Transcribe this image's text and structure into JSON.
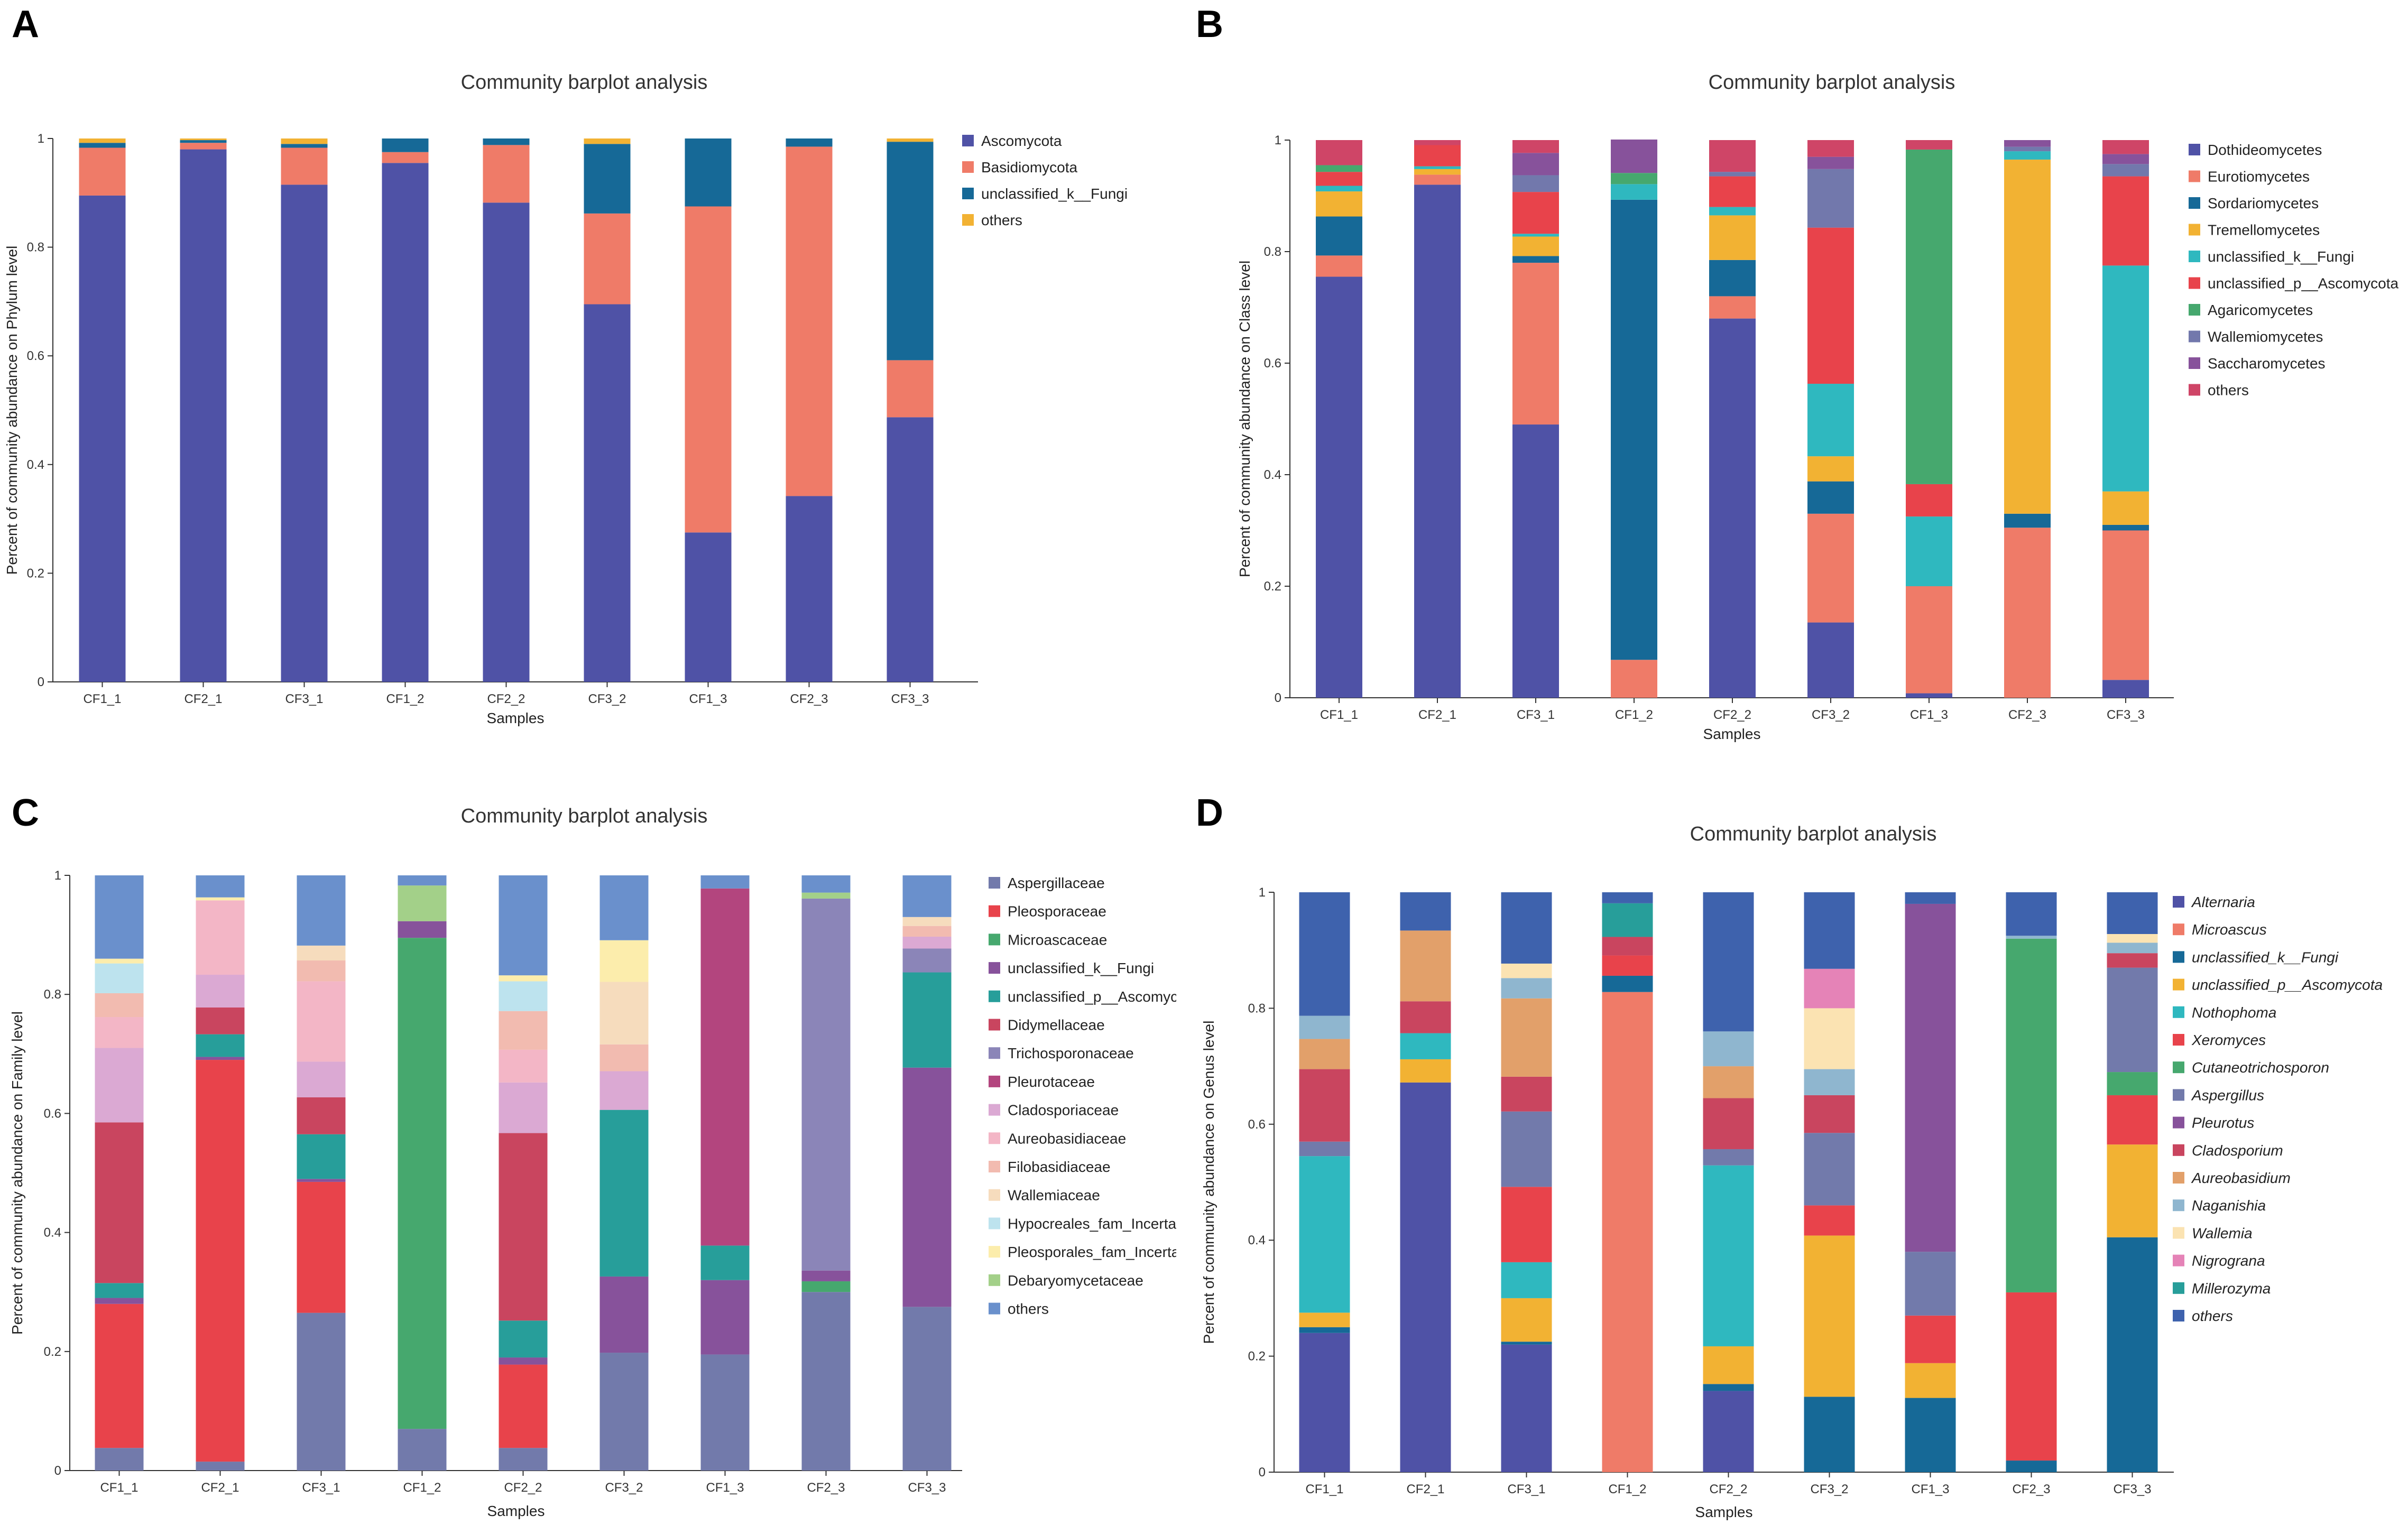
{
  "chart_data": [
    {
      "panel": "A",
      "type": "bar",
      "stacked": true,
      "title": "Community barplot analysis",
      "xlabel": "Samples",
      "ylabel": "Percent of community abundance on Phylum level",
      "ylim": [
        0,
        1
      ],
      "yticks": [
        "0",
        "0.2",
        "0.4",
        "0.6",
        "0.8",
        "1"
      ],
      "categories": [
        "CF1_1",
        "CF2_1",
        "CF3_1",
        "CF1_2",
        "CF2_2",
        "CF3_2",
        "CF1_3",
        "CF2_3",
        "CF3_3"
      ],
      "legend_italic": false,
      "series": [
        {
          "name": "Ascomycota",
          "color": "#4f52a6",
          "values": [
            0.895,
            0.98,
            0.915,
            0.955,
            0.882,
            0.695,
            0.275,
            0.342,
            0.487
          ]
        },
        {
          "name": "Basidiomycota",
          "color": "#ef7b68",
          "values": [
            0.088,
            0.012,
            0.068,
            0.02,
            0.106,
            0.167,
            0.6,
            0.643,
            0.105
          ]
        },
        {
          "name": "unclassified_k__Fungi",
          "color": "#166997",
          "values": [
            0.009,
            0.005,
            0.007,
            0.025,
            0.012,
            0.128,
            0.125,
            0.015,
            0.402
          ]
        },
        {
          "name": "others",
          "color": "#f2b233",
          "values": [
            0.008,
            0.003,
            0.01,
            0.0,
            0.0,
            0.01,
            0.0,
            0.0,
            0.006
          ]
        }
      ]
    },
    {
      "panel": "B",
      "type": "bar",
      "stacked": true,
      "title": "Community barplot analysis",
      "xlabel": "Samples",
      "ylabel": "Percent of community abundance on Class level",
      "ylim": [
        0,
        1
      ],
      "yticks": [
        "0",
        "0.2",
        "0.4",
        "0.6",
        "0.8",
        "1"
      ],
      "categories": [
        "CF1_1",
        "CF2_1",
        "CF3_1",
        "CF1_2",
        "CF2_2",
        "CF3_2",
        "CF1_3",
        "CF2_3",
        "CF3_3"
      ],
      "legend_italic": false,
      "series": [
        {
          "name": "Dothideomycetes",
          "color": "#4f52a6",
          "values": [
            0.755,
            0.92,
            0.49,
            0.0,
            0.68,
            0.135,
            0.008,
            0.0,
            0.032
          ]
        },
        {
          "name": "Eurotiomycetes",
          "color": "#ef7b68",
          "values": [
            0.038,
            0.018,
            0.29,
            0.068,
            0.04,
            0.195,
            0.192,
            0.305,
            0.268
          ]
        },
        {
          "name": "Sordariomycetes",
          "color": "#166997",
          "values": [
            0.07,
            0.0,
            0.012,
            0.825,
            0.065,
            0.058,
            0.0,
            0.025,
            0.01
          ]
        },
        {
          "name": "Tremellomycetes",
          "color": "#f2b233",
          "values": [
            0.045,
            0.01,
            0.035,
            0.0,
            0.08,
            0.045,
            0.0,
            0.635,
            0.06
          ]
        },
        {
          "name": "unclassified_k__Fungi",
          "color": "#2fb8bf",
          "values": [
            0.01,
            0.005,
            0.005,
            0.028,
            0.015,
            0.13,
            0.125,
            0.015,
            0.405
          ]
        },
        {
          "name": "unclassified_p__Ascomycota",
          "color": "#e8434b",
          "values": [
            0.025,
            0.038,
            0.075,
            0.0,
            0.055,
            0.28,
            0.058,
            0.0,
            0.16
          ]
        },
        {
          "name": "Agaricomycetes",
          "color": "#46a86e",
          "values": [
            0.012,
            0.0,
            0.0,
            0.02,
            0.0,
            0.0,
            0.6,
            0.0,
            0.0
          ]
        },
        {
          "name": "Wallemiomycetes",
          "color": "#7278ac",
          "values": [
            0.0,
            0.0,
            0.03,
            0.0,
            0.008,
            0.105,
            0.0,
            0.008,
            0.022
          ]
        },
        {
          "name": "Saccharomycetes",
          "color": "#87529b",
          "values": [
            0.0,
            0.0,
            0.04,
            0.06,
            0.0,
            0.022,
            0.0,
            0.012,
            0.018
          ]
        },
        {
          "name": "others",
          "color": "#cf4567",
          "values": [
            0.045,
            0.009,
            0.023,
            0.0,
            0.057,
            0.03,
            0.017,
            0.0,
            0.025
          ]
        }
      ]
    },
    {
      "panel": "C",
      "type": "bar",
      "stacked": true,
      "title": "Community barplot analysis",
      "xlabel": "Samples",
      "ylabel": "Percent of community abundance on Family level",
      "ylim": [
        0,
        1
      ],
      "yticks": [
        "0",
        "0.2",
        "0.4",
        "0.6",
        "0.8",
        "1"
      ],
      "categories": [
        "CF1_1",
        "CF2_1",
        "CF3_1",
        "CF1_2",
        "CF2_2",
        "CF3_2",
        "CF1_3",
        "CF2_3",
        "CF3_3"
      ],
      "legend_italic": false,
      "series": [
        {
          "name": "Aspergillaceae",
          "color": "#727aab",
          "values": [
            0.038,
            0.015,
            0.265,
            0.07,
            0.038,
            0.198,
            0.195,
            0.3,
            0.275
          ]
        },
        {
          "name": "Pleosporaceae",
          "color": "#e8434b",
          "values": [
            0.242,
            0.675,
            0.22,
            0.0,
            0.14,
            0.0,
            0.0,
            0.0,
            0.0
          ]
        },
        {
          "name": "Microascaceae",
          "color": "#46a86e",
          "values": [
            0.0,
            0.0,
            0.0,
            0.825,
            0.0,
            0.0,
            0.0,
            0.018,
            0.0
          ]
        },
        {
          "name": "unclassified_k__Fungi",
          "color": "#87529b",
          "values": [
            0.01,
            0.005,
            0.005,
            0.028,
            0.012,
            0.128,
            0.125,
            0.018,
            0.402
          ]
        },
        {
          "name": "unclassified_p__Ascomycota",
          "color": "#279e9a",
          "values": [
            0.025,
            0.038,
            0.075,
            0.0,
            0.062,
            0.28,
            0.058,
            0.0,
            0.16
          ]
        },
        {
          "name": "Didymellaceae",
          "color": "#c9455f",
          "values": [
            0.27,
            0.045,
            0.062,
            0.0,
            0.315,
            0.0,
            0.0,
            0.0,
            0.0
          ]
        },
        {
          "name": "Trichosporonaceae",
          "color": "#8b85b8",
          "values": [
            0.0,
            0.0,
            0.0,
            0.0,
            0.0,
            0.0,
            0.0,
            0.625,
            0.04
          ]
        },
        {
          "name": "Pleurotaceae",
          "color": "#b3457e",
          "values": [
            0.0,
            0.0,
            0.0,
            0.0,
            0.0,
            0.0,
            0.6,
            0.0,
            0.0
          ]
        },
        {
          "name": "Cladosporiaceae",
          "color": "#dba9d3",
          "values": [
            0.125,
            0.055,
            0.06,
            0.0,
            0.085,
            0.065,
            0.0,
            0.0,
            0.02
          ]
        },
        {
          "name": "Aureobasidiaceae",
          "color": "#f3b6c6",
          "values": [
            0.052,
            0.125,
            0.135,
            0.0,
            0.055,
            0.0,
            0.0,
            0.0,
            0.0
          ]
        },
        {
          "name": "Filobasidiaceae",
          "color": "#f2bbb0",
          "values": [
            0.04,
            0.0,
            0.035,
            0.0,
            0.065,
            0.045,
            0.0,
            0.0,
            0.018
          ]
        },
        {
          "name": "Wallemiaceae",
          "color": "#f6dcbd",
          "values": [
            0.0,
            0.0,
            0.025,
            0.0,
            0.0,
            0.105,
            0.0,
            0.0,
            0.015
          ]
        },
        {
          "name": "Hypocreales_fam_Incertae_sedis",
          "color": "#bde3ee",
          "values": [
            0.05,
            0.0,
            0.0,
            0.0,
            0.05,
            0.0,
            0.0,
            0.0,
            0.0
          ]
        },
        {
          "name": "Pleosporales_fam_Incertae_sedis",
          "color": "#fcedac",
          "values": [
            0.008,
            0.005,
            0.0,
            0.0,
            0.01,
            0.07,
            0.0,
            0.0,
            0.0
          ]
        },
        {
          "name": "Debaryomycetaceae",
          "color": "#a3d089",
          "values": [
            0.0,
            0.0,
            0.0,
            0.06,
            0.0,
            0.0,
            0.0,
            0.01,
            0.0
          ]
        },
        {
          "name": "others",
          "color": "#6a90cc",
          "values": [
            0.14,
            0.037,
            0.118,
            0.017,
            0.168,
            0.109,
            0.022,
            0.029,
            0.07
          ]
        }
      ]
    },
    {
      "panel": "D",
      "type": "bar",
      "stacked": true,
      "title": "Community barplot analysis",
      "xlabel": "Samples",
      "ylabel": "Percent of community abundance on Genus level",
      "ylim": [
        0,
        1
      ],
      "yticks": [
        "0",
        "0.2",
        "0.4",
        "0.6",
        "0.8",
        "1"
      ],
      "categories": [
        "CF1_1",
        "CF2_1",
        "CF3_1",
        "CF1_2",
        "CF2_2",
        "CF3_2",
        "CF1_3",
        "CF2_3",
        "CF3_3"
      ],
      "legend_italic": true,
      "series": [
        {
          "name": "Alternaria",
          "color": "#4f52a6",
          "values": [
            0.24,
            0.672,
            0.22,
            0.0,
            0.14,
            0.0,
            0.0,
            0.0,
            0.0
          ]
        },
        {
          "name": "Microascus",
          "color": "#ef7b68",
          "values": [
            0.0,
            0.0,
            0.0,
            0.828,
            0.0,
            0.0,
            0.0,
            0.0,
            0.0
          ]
        },
        {
          "name": "unclassified_k__Fungi",
          "color": "#166997",
          "values": [
            0.01,
            0.0,
            0.005,
            0.028,
            0.012,
            0.13,
            0.128,
            0.02,
            0.405
          ]
        },
        {
          "name": "unclassified_p__Ascomycota",
          "color": "#f2b233",
          "values": [
            0.025,
            0.04,
            0.075,
            0.0,
            0.065,
            0.278,
            0.06,
            0.0,
            0.16
          ]
        },
        {
          "name": "Nothophoma",
          "color": "#2fb8bf",
          "values": [
            0.27,
            0.045,
            0.062,
            0.0,
            0.312,
            0.0,
            0.0,
            0.0,
            0.0
          ]
        },
        {
          "name": "Xeromyces",
          "color": "#e8434b",
          "values": [
            0.0,
            0.0,
            0.13,
            0.035,
            0.0,
            0.052,
            0.082,
            0.29,
            0.085
          ]
        },
        {
          "name": "Cutaneotrichosporon",
          "color": "#46a86e",
          "values": [
            0.0,
            0.0,
            0.0,
            0.0,
            0.0,
            0.0,
            0.0,
            0.61,
            0.04
          ]
        },
        {
          "name": "Aspergillus",
          "color": "#727aab",
          "values": [
            0.025,
            0.0,
            0.13,
            0.0,
            0.028,
            0.125,
            0.11,
            0.0,
            0.18
          ]
        },
        {
          "name": "Pleurotus",
          "color": "#87529b",
          "values": [
            0.0,
            0.0,
            0.0,
            0.0,
            0.0,
            0.0,
            0.6,
            0.0,
            0.0
          ]
        },
        {
          "name": "Cladosporium",
          "color": "#c9455f",
          "values": [
            0.125,
            0.055,
            0.06,
            0.032,
            0.088,
            0.065,
            0.0,
            0.0,
            0.025
          ]
        },
        {
          "name": "Aureobasidium",
          "color": "#e2a06a",
          "values": [
            0.052,
            0.122,
            0.135,
            0.0,
            0.055,
            0.0,
            0.0,
            0.0,
            0.0
          ]
        },
        {
          "name": "Naganishia",
          "color": "#8fb6cf",
          "values": [
            0.04,
            0.0,
            0.035,
            0.0,
            0.06,
            0.045,
            0.0,
            0.005,
            0.018
          ]
        },
        {
          "name": "Wallemia",
          "color": "#fbe3b2",
          "values": [
            0.0,
            0.0,
            0.025,
            0.0,
            0.0,
            0.105,
            0.0,
            0.0,
            0.015
          ]
        },
        {
          "name": "Nigrograna",
          "color": "#e583b7",
          "values": [
            0.0,
            0.0,
            0.0,
            0.0,
            0.0,
            0.068,
            0.0,
            0.0,
            0.0
          ]
        },
        {
          "name": "Millerozyma",
          "color": "#279e9a",
          "values": [
            0.0,
            0.0,
            0.0,
            0.058,
            0.0,
            0.0,
            0.0,
            0.0,
            0.0
          ]
        },
        {
          "name": "others",
          "color": "#3e62ad",
          "values": [
            0.213,
            0.066,
            0.123,
            0.019,
            0.24,
            0.132,
            0.02,
            0.075,
            0.072
          ]
        }
      ]
    }
  ]
}
